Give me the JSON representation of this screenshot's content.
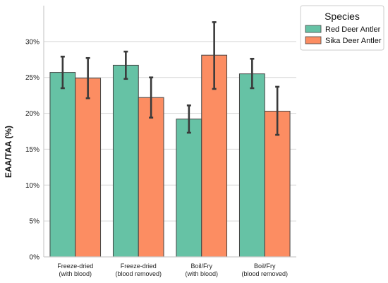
{
  "chart_data": {
    "type": "bar",
    "ylabel": "EAA/TAA (%)",
    "ylim": [
      0,
      35
    ],
    "yticks": [
      0,
      5,
      10,
      15,
      20,
      25,
      30
    ],
    "ytick_labels": [
      "0%",
      "5%",
      "10%",
      "15%",
      "20%",
      "25%",
      "30%"
    ],
    "grid": "horizontal",
    "categories": [
      [
        "Freeze-dried",
        "(with blood)"
      ],
      [
        "Freeze-dried",
        "(blood removed)"
      ],
      [
        "Boil/Fry",
        "(with blood)"
      ],
      [
        "Boil/Fry",
        "(blood removed)"
      ]
    ],
    "legend": {
      "title": "Species",
      "placement": "upper right, outside plot"
    },
    "series": [
      {
        "name": "Red Deer Antler",
        "color": "#66c2a5",
        "values": [
          25.7,
          26.7,
          19.2,
          25.5
        ],
        "error_low": [
          23.5,
          24.8,
          17.3,
          23.5
        ],
        "error_high": [
          27.9,
          28.6,
          21.1,
          27.6
        ]
      },
      {
        "name": "Sika Deer Antler",
        "color": "#fc8d62",
        "values": [
          24.9,
          22.2,
          28.1,
          20.3
        ],
        "error_low": [
          22.1,
          19.4,
          23.4,
          17.0
        ],
        "error_high": [
          27.7,
          25.0,
          32.7,
          23.7
        ]
      }
    ]
  }
}
